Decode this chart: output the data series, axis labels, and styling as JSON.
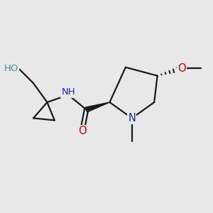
{
  "bg_color": "#e8e8e8",
  "bond_color": "#1a1a1a",
  "atom_colors": {
    "O": "#cc0000",
    "N": "#2222cc",
    "H": "#4a9090",
    "C": "#1a1a1a"
  },
  "figsize": [
    3.0,
    3.0
  ],
  "dpi": 100,
  "xlim": [
    0,
    10
  ],
  "ylim": [
    0,
    10
  ]
}
